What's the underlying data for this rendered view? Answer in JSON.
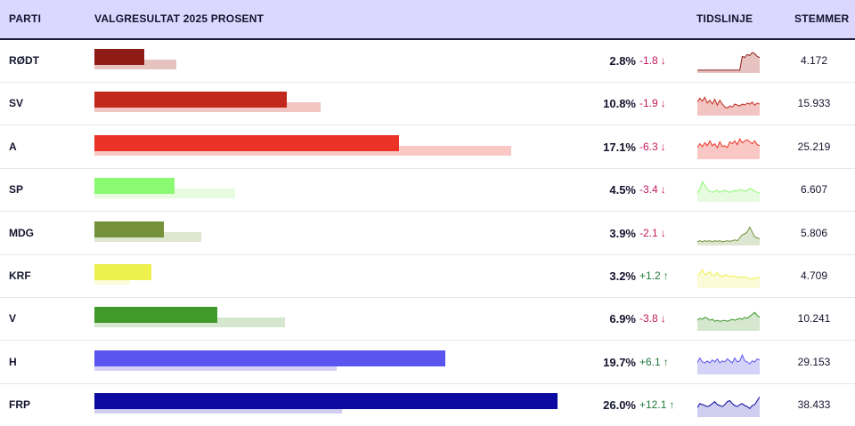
{
  "header": {
    "party": "PARTI",
    "result": "VALGRESULTAT 2025 PROSENT",
    "timeline": "TIDSLINJE",
    "votes": "STEMMER"
  },
  "colors": {
    "up": "#1f7a3a",
    "down": "#c2185b"
  },
  "chart_data": {
    "type": "bar",
    "scale_max_percent": 28,
    "rows": [
      {
        "party": "RØDT",
        "value": 2.8,
        "previous": 4.6,
        "change": "-1.8",
        "direction": "down",
        "votes": "4.172",
        "color": "#8e1b16",
        "prevColor": "#e6c3c0",
        "trend": [
          0.05,
          0.05,
          0.05,
          0.05,
          0.05,
          0.05,
          0.05,
          0.05,
          0.05,
          0.05,
          0.05,
          0.05,
          0.05,
          0.05,
          0.05,
          0.05,
          0.05,
          0.05,
          0.75,
          0.7,
          0.85,
          0.8,
          0.95,
          0.9,
          0.75,
          0.7
        ]
      },
      {
        "party": "SV",
        "value": 10.8,
        "previous": 12.7,
        "change": "-1.9",
        "direction": "down",
        "votes": "15.933",
        "color": "#c2281c",
        "prevColor": "#f2c5c2",
        "trend": [
          0.6,
          0.8,
          0.65,
          0.85,
          0.55,
          0.7,
          0.5,
          0.75,
          0.45,
          0.7,
          0.5,
          0.35,
          0.3,
          0.4,
          0.35,
          0.5,
          0.45,
          0.4,
          0.5,
          0.45,
          0.55,
          0.5,
          0.6,
          0.45,
          0.55,
          0.5
        ]
      },
      {
        "party": "A",
        "value": 17.1,
        "previous": 23.4,
        "change": "-6.3",
        "direction": "down",
        "votes": "25.219",
        "color": "#ea3326",
        "prevColor": "#f9c8c5",
        "trend": [
          0.5,
          0.7,
          0.55,
          0.75,
          0.6,
          0.85,
          0.6,
          0.7,
          0.5,
          0.8,
          0.55,
          0.6,
          0.5,
          0.8,
          0.7,
          0.85,
          0.65,
          0.95,
          0.75,
          0.85,
          0.9,
          0.8,
          0.7,
          0.85,
          0.65,
          0.6
        ]
      },
      {
        "party": "SP",
        "value": 4.5,
        "previous": 7.9,
        "change": "-3.4",
        "direction": "down",
        "votes": "6.607",
        "color": "#8cf972",
        "prevColor": "#e6fbe0",
        "trend": [
          0.35,
          0.55,
          0.95,
          0.75,
          0.55,
          0.45,
          0.4,
          0.45,
          0.5,
          0.4,
          0.45,
          0.5,
          0.45,
          0.4,
          0.45,
          0.5,
          0.45,
          0.55,
          0.5,
          0.45,
          0.5,
          0.6,
          0.55,
          0.45,
          0.4,
          0.35
        ]
      },
      {
        "party": "MDG",
        "value": 3.9,
        "previous": 6.0,
        "change": "-2.1",
        "direction": "down",
        "votes": "5.806",
        "color": "#75923a",
        "prevColor": "#dde6d0",
        "trend": [
          0.1,
          0.15,
          0.1,
          0.15,
          0.12,
          0.15,
          0.1,
          0.15,
          0.12,
          0.15,
          0.1,
          0.12,
          0.15,
          0.12,
          0.15,
          0.2,
          0.15,
          0.3,
          0.45,
          0.5,
          0.6,
          0.85,
          0.6,
          0.35,
          0.3,
          0.25
        ]
      },
      {
        "party": "KRF",
        "value": 3.2,
        "previous": 2.0,
        "change": "+1.2",
        "direction": "up",
        "votes": "4.709",
        "color": "#eef04e",
        "prevColor": "#fbfbd8",
        "trend": [
          0.6,
          0.65,
          0.85,
          0.6,
          0.65,
          0.75,
          0.55,
          0.6,
          0.7,
          0.55,
          0.5,
          0.6,
          0.55,
          0.5,
          0.55,
          0.5,
          0.45,
          0.5,
          0.45,
          0.5,
          0.45,
          0.4,
          0.35,
          0.45,
          0.4,
          0.5
        ]
      },
      {
        "party": "V",
        "value": 6.9,
        "previous": 10.7,
        "change": "-3.8",
        "direction": "down",
        "votes": "10.241",
        "color": "#3f9a2b",
        "prevColor": "#d6e7d0",
        "trend": [
          0.45,
          0.55,
          0.5,
          0.6,
          0.55,
          0.45,
          0.5,
          0.4,
          0.45,
          0.4,
          0.42,
          0.45,
          0.4,
          0.45,
          0.5,
          0.45,
          0.5,
          0.55,
          0.5,
          0.6,
          0.55,
          0.65,
          0.75,
          0.85,
          0.7,
          0.6
        ]
      },
      {
        "party": "H",
        "value": 19.7,
        "previous": 13.6,
        "change": "+6.1",
        "direction": "up",
        "votes": "29.153",
        "color": "#5b55f0",
        "prevColor": "#d4d3f7",
        "trend": [
          0.5,
          0.75,
          0.55,
          0.5,
          0.6,
          0.5,
          0.65,
          0.55,
          0.7,
          0.5,
          0.6,
          0.55,
          0.7,
          0.6,
          0.5,
          0.75,
          0.55,
          0.6,
          0.9,
          0.6,
          0.55,
          0.45,
          0.6,
          0.55,
          0.7,
          0.65
        ]
      },
      {
        "party": "FRP",
        "value": 26.0,
        "previous": 13.9,
        "change": "+12.1",
        "direction": "up",
        "votes": "38.433",
        "color": "#0a0aa0",
        "prevColor": "#cfcdf0",
        "trend": [
          0.4,
          0.6,
          0.55,
          0.5,
          0.45,
          0.5,
          0.6,
          0.7,
          0.55,
          0.5,
          0.45,
          0.55,
          0.7,
          0.75,
          0.6,
          0.5,
          0.45,
          0.55,
          0.6,
          0.5,
          0.45,
          0.35,
          0.5,
          0.55,
          0.75,
          0.95
        ]
      }
    ]
  }
}
